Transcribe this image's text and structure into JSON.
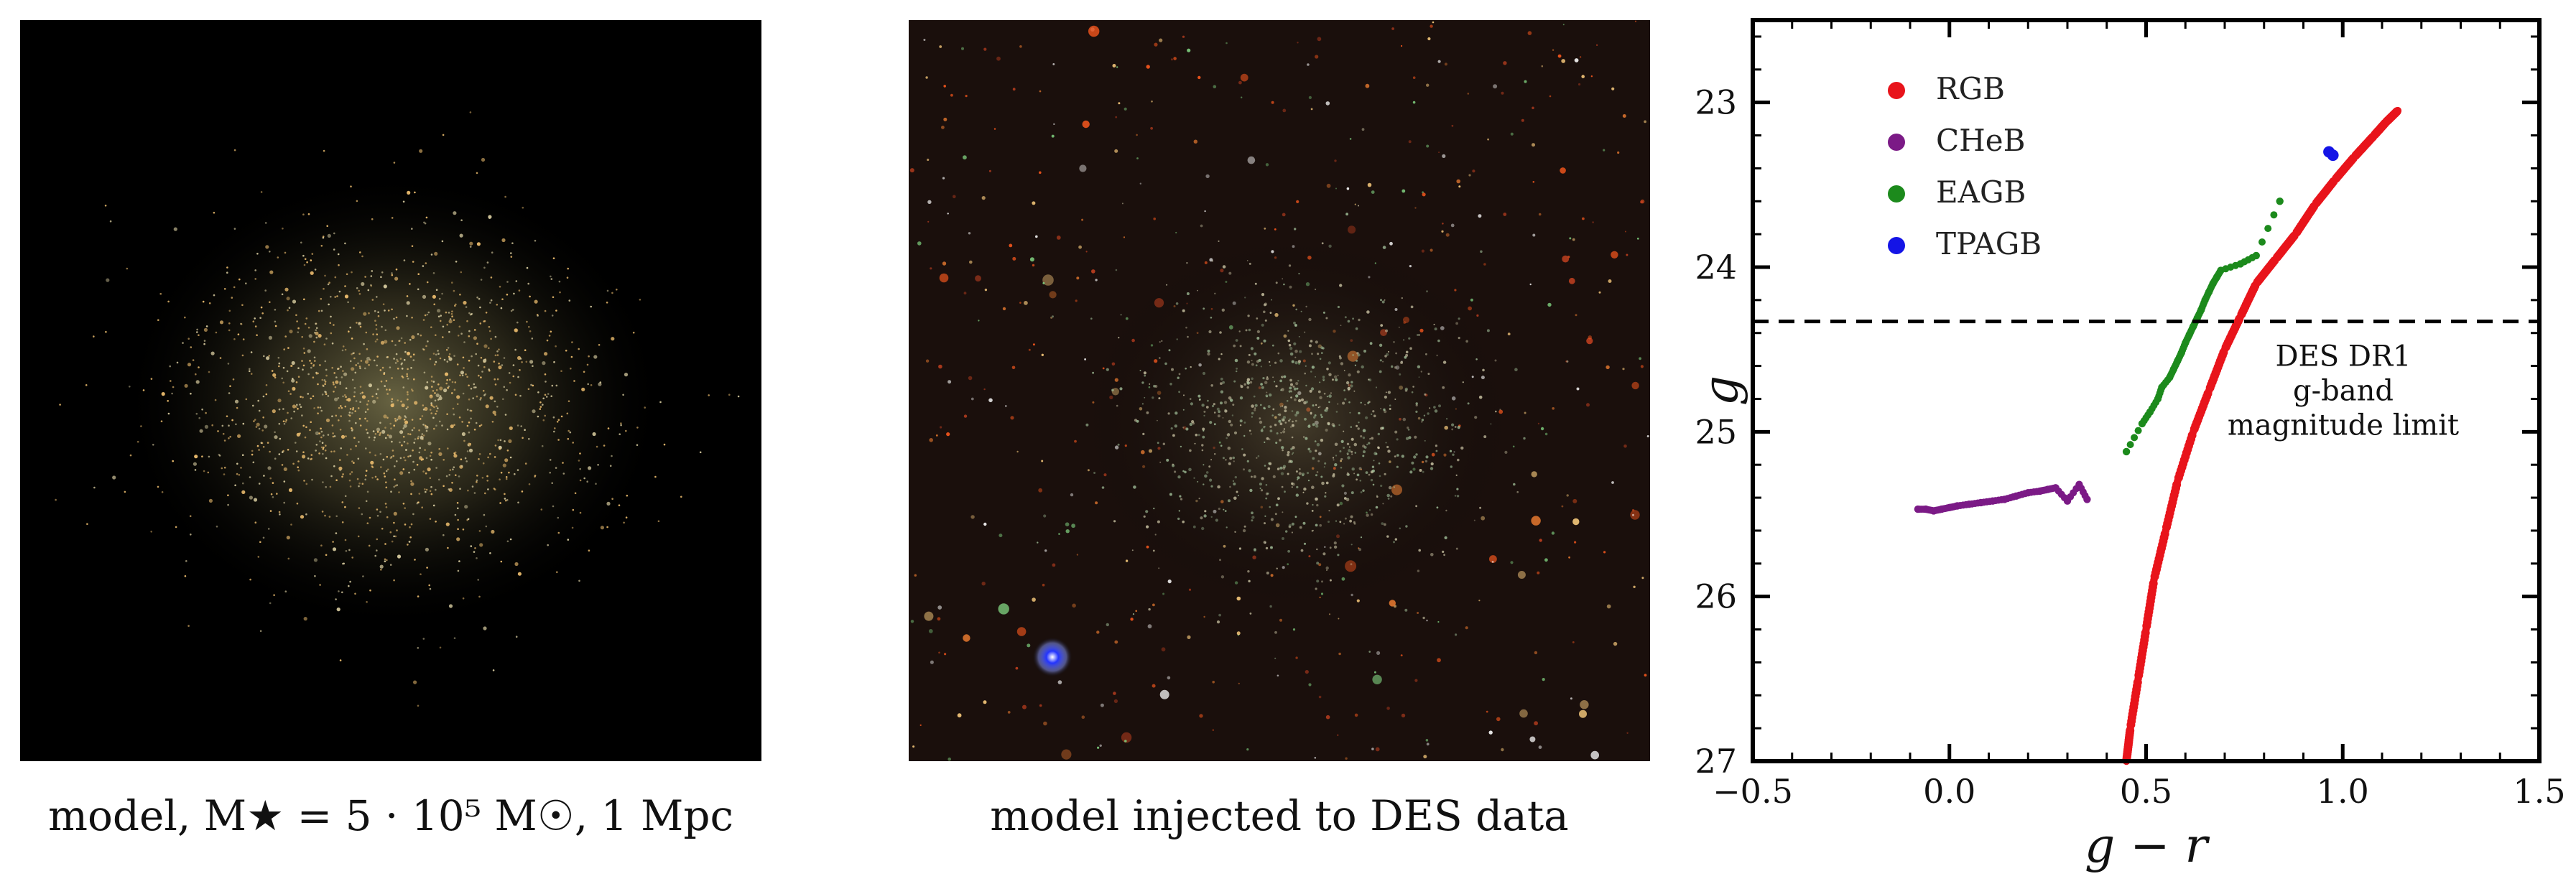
{
  "captions": {
    "model": "model, M★ = 5 · 10⁵ M☉, 1 Mpc",
    "injected": "model injected to DES data"
  },
  "chart_data": {
    "type": "scatter",
    "title": "",
    "xlabel": "g − r",
    "ylabel": "g",
    "xlim": [
      -0.5,
      1.5
    ],
    "ylim": [
      27,
      22.5
    ],
    "y_inverted": true,
    "xticks": [
      -0.5,
      0.0,
      0.5,
      1.0,
      1.5
    ],
    "xtick_labels": [
      "−0.5",
      "0.0",
      "0.5",
      "1.0",
      "1.5"
    ],
    "yticks": [
      23,
      24,
      25,
      26,
      27
    ],
    "ytick_labels": [
      "23",
      "24",
      "25",
      "26",
      "27"
    ],
    "grid": false,
    "legend_position": "top-left",
    "series": [
      {
        "name": "RGB",
        "color": "#e8141b",
        "x": [
          0.45,
          0.46,
          0.48,
          0.5,
          0.52,
          0.55,
          0.58,
          0.62,
          0.66,
          0.7,
          0.74,
          0.78,
          0.83,
          0.88,
          0.93,
          0.98,
          1.03,
          1.08,
          1.11,
          1.14
        ],
        "y": [
          27.0,
          26.8,
          26.5,
          26.2,
          25.9,
          25.6,
          25.3,
          25.0,
          24.75,
          24.5,
          24.3,
          24.1,
          23.95,
          23.8,
          23.62,
          23.47,
          23.33,
          23.2,
          23.12,
          23.05
        ]
      },
      {
        "name": "CHeB",
        "color": "#7b1a86",
        "x": [
          -0.08,
          -0.06,
          -0.04,
          -0.02,
          0.0,
          0.02,
          0.05,
          0.08,
          0.11,
          0.14,
          0.17,
          0.2,
          0.23,
          0.25,
          0.27,
          0.3,
          0.33,
          0.35
        ],
        "y": [
          25.47,
          25.47,
          25.48,
          25.47,
          25.46,
          25.45,
          25.44,
          25.43,
          25.42,
          25.41,
          25.39,
          25.37,
          25.36,
          25.35,
          25.34,
          25.42,
          25.32,
          25.41
        ]
      },
      {
        "name": "EAGB",
        "color": "#1c8a1c",
        "x": [
          0.45,
          0.49,
          0.51,
          0.53,
          0.54,
          0.56,
          0.57,
          0.58,
          0.59,
          0.6,
          0.61,
          0.62,
          0.63,
          0.64,
          0.65,
          0.66,
          0.67,
          0.68,
          0.69,
          0.74,
          0.78,
          0.84
        ],
        "y": [
          25.12,
          24.95,
          24.88,
          24.8,
          24.73,
          24.67,
          24.62,
          24.57,
          24.52,
          24.46,
          24.41,
          24.36,
          24.31,
          24.26,
          24.2,
          24.15,
          24.1,
          24.06,
          24.02,
          23.98,
          23.93,
          23.6
        ]
      },
      {
        "name": "TPAGB",
        "color": "#1414e6",
        "x": [
          0.965,
          0.975
        ],
        "y": [
          23.3,
          23.32
        ]
      }
    ],
    "annotations": [
      {
        "type": "hline",
        "y": 24.33,
        "style": "dashed",
        "text": [
          "DES DR1",
          "g-band",
          "magnitude limit"
        ]
      }
    ]
  }
}
